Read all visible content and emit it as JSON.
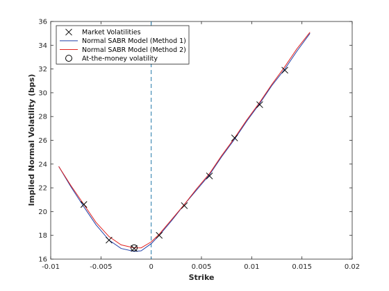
{
  "chart_data": {
    "type": "line",
    "xlabel": "Strike",
    "ylabel": "Implied  Normal Volatility (bps)",
    "xlim": [
      -0.01,
      0.02
    ],
    "ylim": [
      16,
      36
    ],
    "x_ticks": [
      -0.01,
      -0.005,
      0,
      0.005,
      0.01,
      0.015,
      0.02
    ],
    "x_tick_labels": [
      "-0.01",
      "-0.005",
      "0",
      "0.005",
      "0.01",
      "0.015",
      "0.02"
    ],
    "y_ticks": [
      16,
      18,
      20,
      22,
      24,
      26,
      28,
      30,
      32,
      34,
      36
    ],
    "y_tick_labels": [
      "16",
      "18",
      "20",
      "22",
      "24",
      "26",
      "28",
      "30",
      "32",
      "34",
      "36"
    ],
    "grid": false,
    "legend_position": "top-left",
    "vertical_line_x": 0,
    "series": [
      {
        "name": "Market Volatilities",
        "kind": "markers",
        "marker": "x",
        "color": "#000000",
        "x": [
          -0.0067,
          -0.0042,
          -0.0017,
          0.0008,
          0.0033,
          0.0058,
          0.0083,
          0.0108,
          0.0133
        ],
        "y": [
          20.6,
          17.6,
          16.9,
          18.0,
          20.5,
          23.0,
          26.2,
          29.0,
          31.9
        ]
      },
      {
        "name": "Normal SABR Model (Method 1)",
        "kind": "line",
        "color": "#1f3fa8",
        "x": [
          -0.0092,
          -0.008,
          -0.0067,
          -0.0055,
          -0.0042,
          -0.003,
          -0.0017,
          -0.001,
          0.0,
          0.0008,
          0.002,
          0.0033,
          0.0045,
          0.0058,
          0.007,
          0.0083,
          0.0095,
          0.0108,
          0.012,
          0.0133,
          0.0145,
          0.0158
        ],
        "y": [
          23.8,
          22.1,
          20.4,
          18.9,
          17.6,
          16.9,
          16.65,
          16.7,
          17.3,
          18.0,
          19.2,
          20.6,
          21.8,
          23.1,
          24.6,
          26.1,
          27.6,
          29.1,
          30.6,
          32.0,
          33.5,
          35.0
        ]
      },
      {
        "name": "Normal SABR Model (Method 2)",
        "kind": "line",
        "color": "#e0211f",
        "x": [
          -0.0092,
          -0.008,
          -0.0067,
          -0.0055,
          -0.0042,
          -0.003,
          -0.0017,
          -0.001,
          0.0,
          0.0008,
          0.002,
          0.0033,
          0.0045,
          0.0058,
          0.007,
          0.0083,
          0.0095,
          0.0108,
          0.012,
          0.0133,
          0.0145,
          0.0158
        ],
        "y": [
          23.8,
          22.2,
          20.6,
          19.1,
          17.9,
          17.2,
          16.95,
          16.95,
          17.45,
          18.1,
          19.3,
          20.6,
          21.9,
          23.2,
          24.7,
          26.2,
          27.7,
          29.2,
          30.7,
          32.2,
          33.7,
          35.1
        ]
      },
      {
        "name": "At-the-money volatility",
        "kind": "markers",
        "marker": "o",
        "color": "#000000",
        "x": [
          -0.0017
        ],
        "y": [
          16.95
        ]
      }
    ]
  }
}
